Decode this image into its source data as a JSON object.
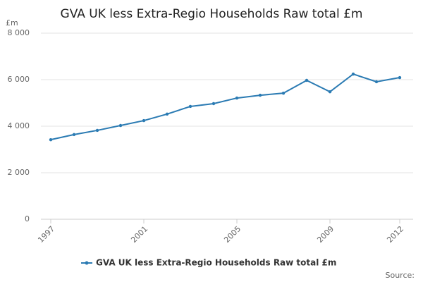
{
  "chart_data": {
    "type": "line",
    "title": "GVA UK less Extra-Regio Households Raw total £m",
    "y_unit_label": "£m",
    "source": "Source:",
    "x": [
      1997,
      1998,
      1999,
      2000,
      2001,
      2002,
      2003,
      2004,
      2005,
      2006,
      2007,
      2008,
      2009,
      2010,
      2011,
      2012
    ],
    "series": [
      {
        "name": "GVA UK less Extra-Regio Households Raw total £m",
        "color": "#2b7bb3",
        "values": [
          3420,
          3640,
          3820,
          4030,
          4240,
          4520,
          4850,
          4970,
          5210,
          5330,
          5420,
          5970,
          5480,
          6240,
          5910,
          6090
        ]
      }
    ],
    "xlim": [
      1997,
      2012
    ],
    "xticks": [
      1997,
      2001,
      2005,
      2009,
      2012
    ],
    "ylim": [
      0,
      8000
    ],
    "yticks": [
      0,
      {
        "value": 2000,
        "label": "2 000"
      },
      {
        "value": 4000,
        "label": "4 000"
      },
      {
        "value": 6000,
        "label": "6 000"
      },
      {
        "value": 8000,
        "label": "8 000"
      }
    ],
    "grid": true,
    "legend": "bottom"
  }
}
